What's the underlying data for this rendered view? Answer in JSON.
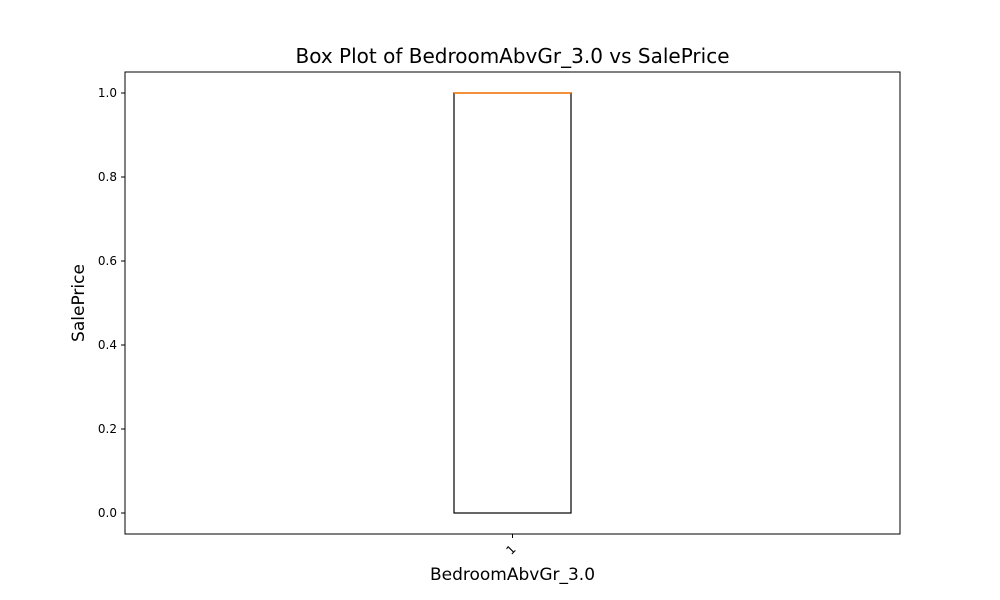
{
  "chart_data": {
    "type": "box",
    "title": "Box Plot of BedroomAbvGr_3.0 vs SalePrice",
    "xlabel": "BedroomAbvGr_3.0",
    "ylabel": "SalePrice",
    "categories": [
      "1"
    ],
    "ylim": [
      -0.05,
      1.05
    ],
    "y_ticks": [
      0.0,
      0.2,
      0.4,
      0.6,
      0.8,
      1.0
    ],
    "y_tick_labels": [
      "0.0",
      "0.2",
      "0.4",
      "0.6",
      "0.8",
      "1.0"
    ],
    "grid": false,
    "boxes": [
      {
        "category": "1",
        "whisker_low": 0.0,
        "q1": 0.0,
        "median": 1.0,
        "q3": 1.0,
        "whisker_high": 1.0
      }
    ],
    "colors": {
      "box": "#000000",
      "median": "#ff7f0e"
    }
  }
}
